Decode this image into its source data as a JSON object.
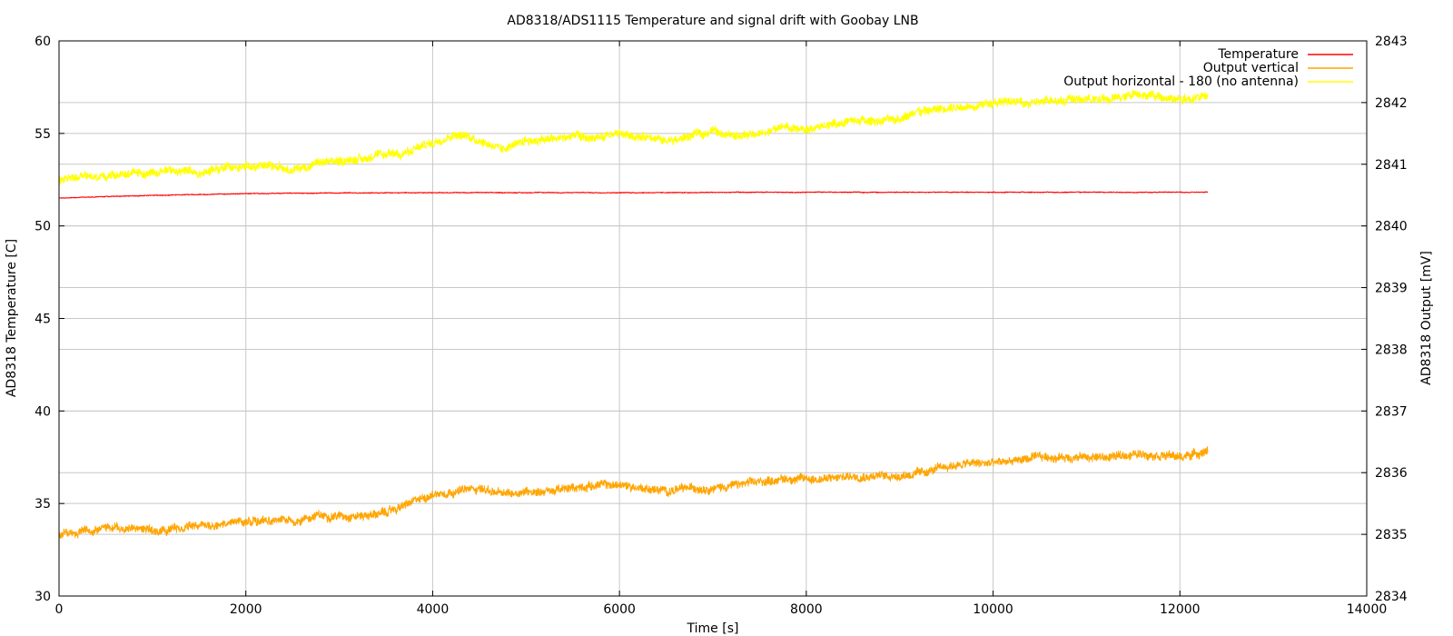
{
  "chart_data": {
    "type": "line",
    "title": "AD8318/ADS1115 Temperature and signal drift with Goobay LNB",
    "xlabel": "Time [s]",
    "ylabel": "AD8318 Temperature [C]",
    "y2label": "AD8318 Output [mV]",
    "xlim": [
      0,
      14000
    ],
    "ylim": [
      30,
      60
    ],
    "y2lim": [
      2834,
      2843
    ],
    "xticks": [
      "0",
      "2000",
      "4000",
      "6000",
      "8000",
      "10000",
      "12000",
      "14000"
    ],
    "yticks": [
      "30",
      "35",
      "40",
      "45",
      "50",
      "55",
      "60"
    ],
    "y2ticks": [
      "2834",
      "2835",
      "2836",
      "2837",
      "2838",
      "2839",
      "2840",
      "2841",
      "2842",
      "2843"
    ],
    "grid": true,
    "legend_position": "top-right",
    "series": [
      {
        "name": "Temperature",
        "axis": "y",
        "color": "#ff0000",
        "noise": 0.02,
        "x": [
          0,
          300,
          600,
          1000,
          1500,
          2000,
          3000,
          4000,
          6000,
          8000,
          10000,
          12000,
          12300
        ],
        "values": [
          51.5,
          51.55,
          51.6,
          51.65,
          51.7,
          51.75,
          51.78,
          51.8,
          51.8,
          51.82,
          51.82,
          51.82,
          51.82
        ]
      },
      {
        "name": "Output vertical",
        "axis": "y2",
        "color": "#ffa500",
        "noise": 0.06,
        "x": [
          0,
          250,
          500,
          750,
          1000,
          1250,
          1500,
          1750,
          2000,
          2250,
          2500,
          2750,
          3000,
          3250,
          3500,
          3750,
          4000,
          4250,
          4500,
          4750,
          5000,
          5250,
          5500,
          5750,
          6000,
          6250,
          6500,
          6750,
          7000,
          7250,
          7500,
          7750,
          8000,
          8250,
          8500,
          8750,
          9000,
          9250,
          9500,
          9750,
          10000,
          10250,
          10500,
          10750,
          11000,
          11250,
          11500,
          11750,
          12000,
          12300
        ],
        "values": [
          2835.0,
          2835.05,
          2835.1,
          2835.1,
          2835.05,
          2835.1,
          2835.15,
          2835.15,
          2835.2,
          2835.25,
          2835.2,
          2835.3,
          2835.3,
          2835.3,
          2835.35,
          2835.5,
          2835.65,
          2835.7,
          2835.75,
          2835.65,
          2835.7,
          2835.7,
          2835.75,
          2835.8,
          2835.8,
          2835.75,
          2835.7,
          2835.75,
          2835.75,
          2835.8,
          2835.85,
          2835.9,
          2835.9,
          2835.9,
          2835.95,
          2835.95,
          2835.95,
          2836.0,
          2836.1,
          2836.15,
          2836.15,
          2836.2,
          2836.25,
          2836.25,
          2836.25,
          2836.25,
          2836.3,
          2836.3,
          2836.25,
          2836.35
        ]
      },
      {
        "name": "Output horizontal - 180 (no antenna)",
        "axis": "y2",
        "color": "#ffff00",
        "noise": 0.06,
        "x": [
          0,
          250,
          500,
          750,
          1000,
          1250,
          1500,
          1750,
          2000,
          2250,
          2500,
          2750,
          3000,
          3250,
          3500,
          3750,
          4000,
          4250,
          4500,
          4750,
          5000,
          5250,
          5500,
          5750,
          6000,
          6250,
          6500,
          6750,
          7000,
          7250,
          7500,
          7750,
          8000,
          8250,
          8500,
          8750,
          9000,
          9250,
          9500,
          9750,
          10000,
          10250,
          10500,
          10750,
          11000,
          11250,
          11500,
          11750,
          12000,
          12300
        ],
        "values": [
          2840.75,
          2840.8,
          2840.8,
          2840.85,
          2840.85,
          2840.9,
          2840.85,
          2840.95,
          2840.95,
          2841.0,
          2840.9,
          2841.0,
          2841.05,
          2841.1,
          2841.15,
          2841.2,
          2841.35,
          2841.5,
          2841.4,
          2841.25,
          2841.4,
          2841.4,
          2841.45,
          2841.4,
          2841.5,
          2841.45,
          2841.35,
          2841.45,
          2841.55,
          2841.45,
          2841.5,
          2841.6,
          2841.55,
          2841.65,
          2841.7,
          2841.7,
          2841.75,
          2841.85,
          2841.9,
          2841.95,
          2842.0,
          2842.0,
          2842.0,
          2842.05,
          2842.05,
          2842.05,
          2842.15,
          2842.1,
          2842.05,
          2842.1
        ]
      }
    ]
  }
}
